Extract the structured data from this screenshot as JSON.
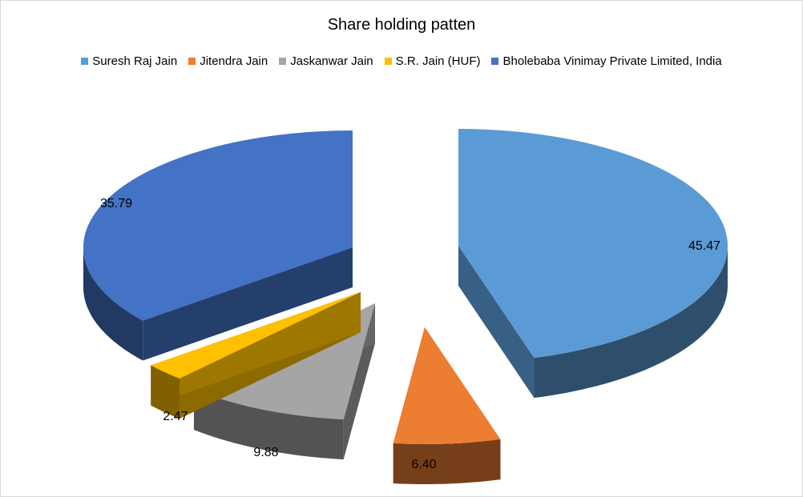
{
  "chart_data": {
    "type": "pie",
    "style": "3d-exploded",
    "title": "Share holding patten",
    "legend_position": "top",
    "categories": [
      "Suresh Raj Jain",
      "Jitendra Jain",
      "Jaskanwar Jain",
      "S.R. Jain (HUF)",
      "Bholebaba Vinimay Private Limited, India"
    ],
    "values": [
      45.47,
      6.4,
      9.88,
      2.47,
      35.79
    ],
    "value_labels": [
      "45.47",
      "6.40",
      "9.88",
      "2.47",
      "35.79"
    ],
    "colors": [
      "#5b9bd5",
      "#ed7d31",
      "#a5a5a5",
      "#ffc000",
      "#4472c4"
    ]
  }
}
